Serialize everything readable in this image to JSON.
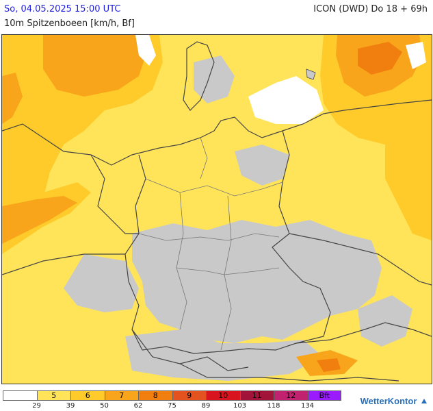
{
  "header": {
    "timestamp": "So, 04.05.2025 15:00 UTC",
    "variable": "10m Spitzenboeen [km/h, Bf]",
    "model_run": "ICON (DWD) Do 18 + 69h"
  },
  "legend": {
    "bins": [
      {
        "bf": "",
        "color": "#ffffff"
      },
      {
        "bf": "5",
        "color": "#ffe45a"
      },
      {
        "bf": "6",
        "color": "#ffcb2a"
      },
      {
        "bf": "7",
        "color": "#f8a51b"
      },
      {
        "bf": "8",
        "color": "#f07f10"
      },
      {
        "bf": "9",
        "color": "#e4531f"
      },
      {
        "bf": "10",
        "color": "#d8151f"
      },
      {
        "bf": "11",
        "color": "#a2133a"
      },
      {
        "bf": "12",
        "color": "#c0226f"
      },
      {
        "bf": "Bft",
        "color": "#9b1bff"
      }
    ],
    "thresholds": [
      "29",
      "39",
      "50",
      "62",
      "75",
      "89",
      "103",
      "118",
      "134"
    ]
  },
  "colors": {
    "bf4_below": "#c9c9c9",
    "bf5": "#ffe45a",
    "bf6": "#ffcb2a",
    "bf7": "#f8a51b",
    "border": "#444444",
    "water_white": "#ffffff"
  },
  "logo": {
    "text": "WetterKontor"
  }
}
